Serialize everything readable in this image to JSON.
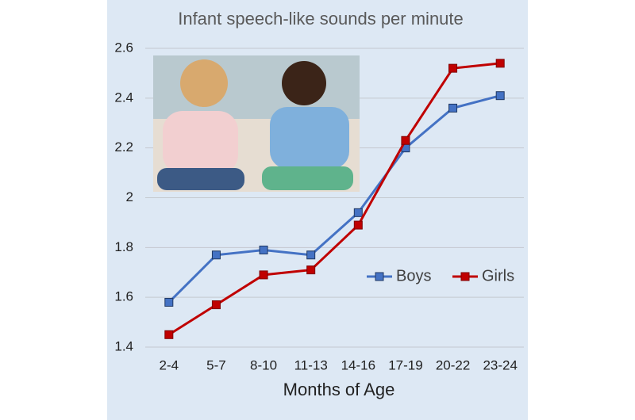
{
  "chart_data": {
    "type": "line",
    "title": "Infant speech-like sounds per minute",
    "x_label": "Months of Age",
    "categories": [
      "2-4",
      "5-7",
      "8-10",
      "11-13",
      "14-16",
      "17-19",
      "20-22",
      "23-24"
    ],
    "series": [
      {
        "name": "Boys",
        "color": "#4472c4",
        "values": [
          1.58,
          1.77,
          1.79,
          1.77,
          1.94,
          2.2,
          2.36,
          2.41
        ]
      },
      {
        "name": "Girls",
        "color": "#c00000",
        "values": [
          1.45,
          1.57,
          1.69,
          1.71,
          1.89,
          2.23,
          2.52,
          2.54
        ]
      }
    ],
    "ylim": [
      1.4,
      2.6
    ],
    "yticks": [
      1.4,
      1.6,
      1.8,
      2,
      2.2,
      2.4,
      2.6
    ],
    "grid": true,
    "legend": "right"
  }
}
